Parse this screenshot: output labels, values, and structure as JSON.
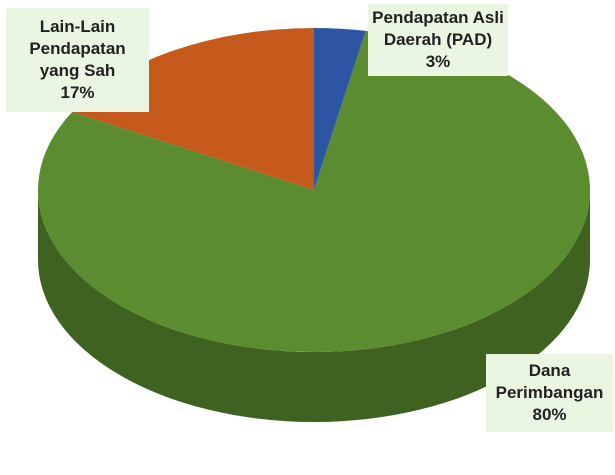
{
  "chart_data": {
    "type": "pie",
    "categories": [
      "Pendapatan Asli Daerah (PAD)",
      "Dana Perimbangan",
      "Lain-Lain Pendapatan yang Sah"
    ],
    "values": [
      3,
      80,
      17
    ],
    "value_labels": [
      "3%",
      "80%",
      "17%"
    ],
    "colors": [
      "#2e55a3",
      "#5b8c2f",
      "#c65a1c"
    ]
  }
}
